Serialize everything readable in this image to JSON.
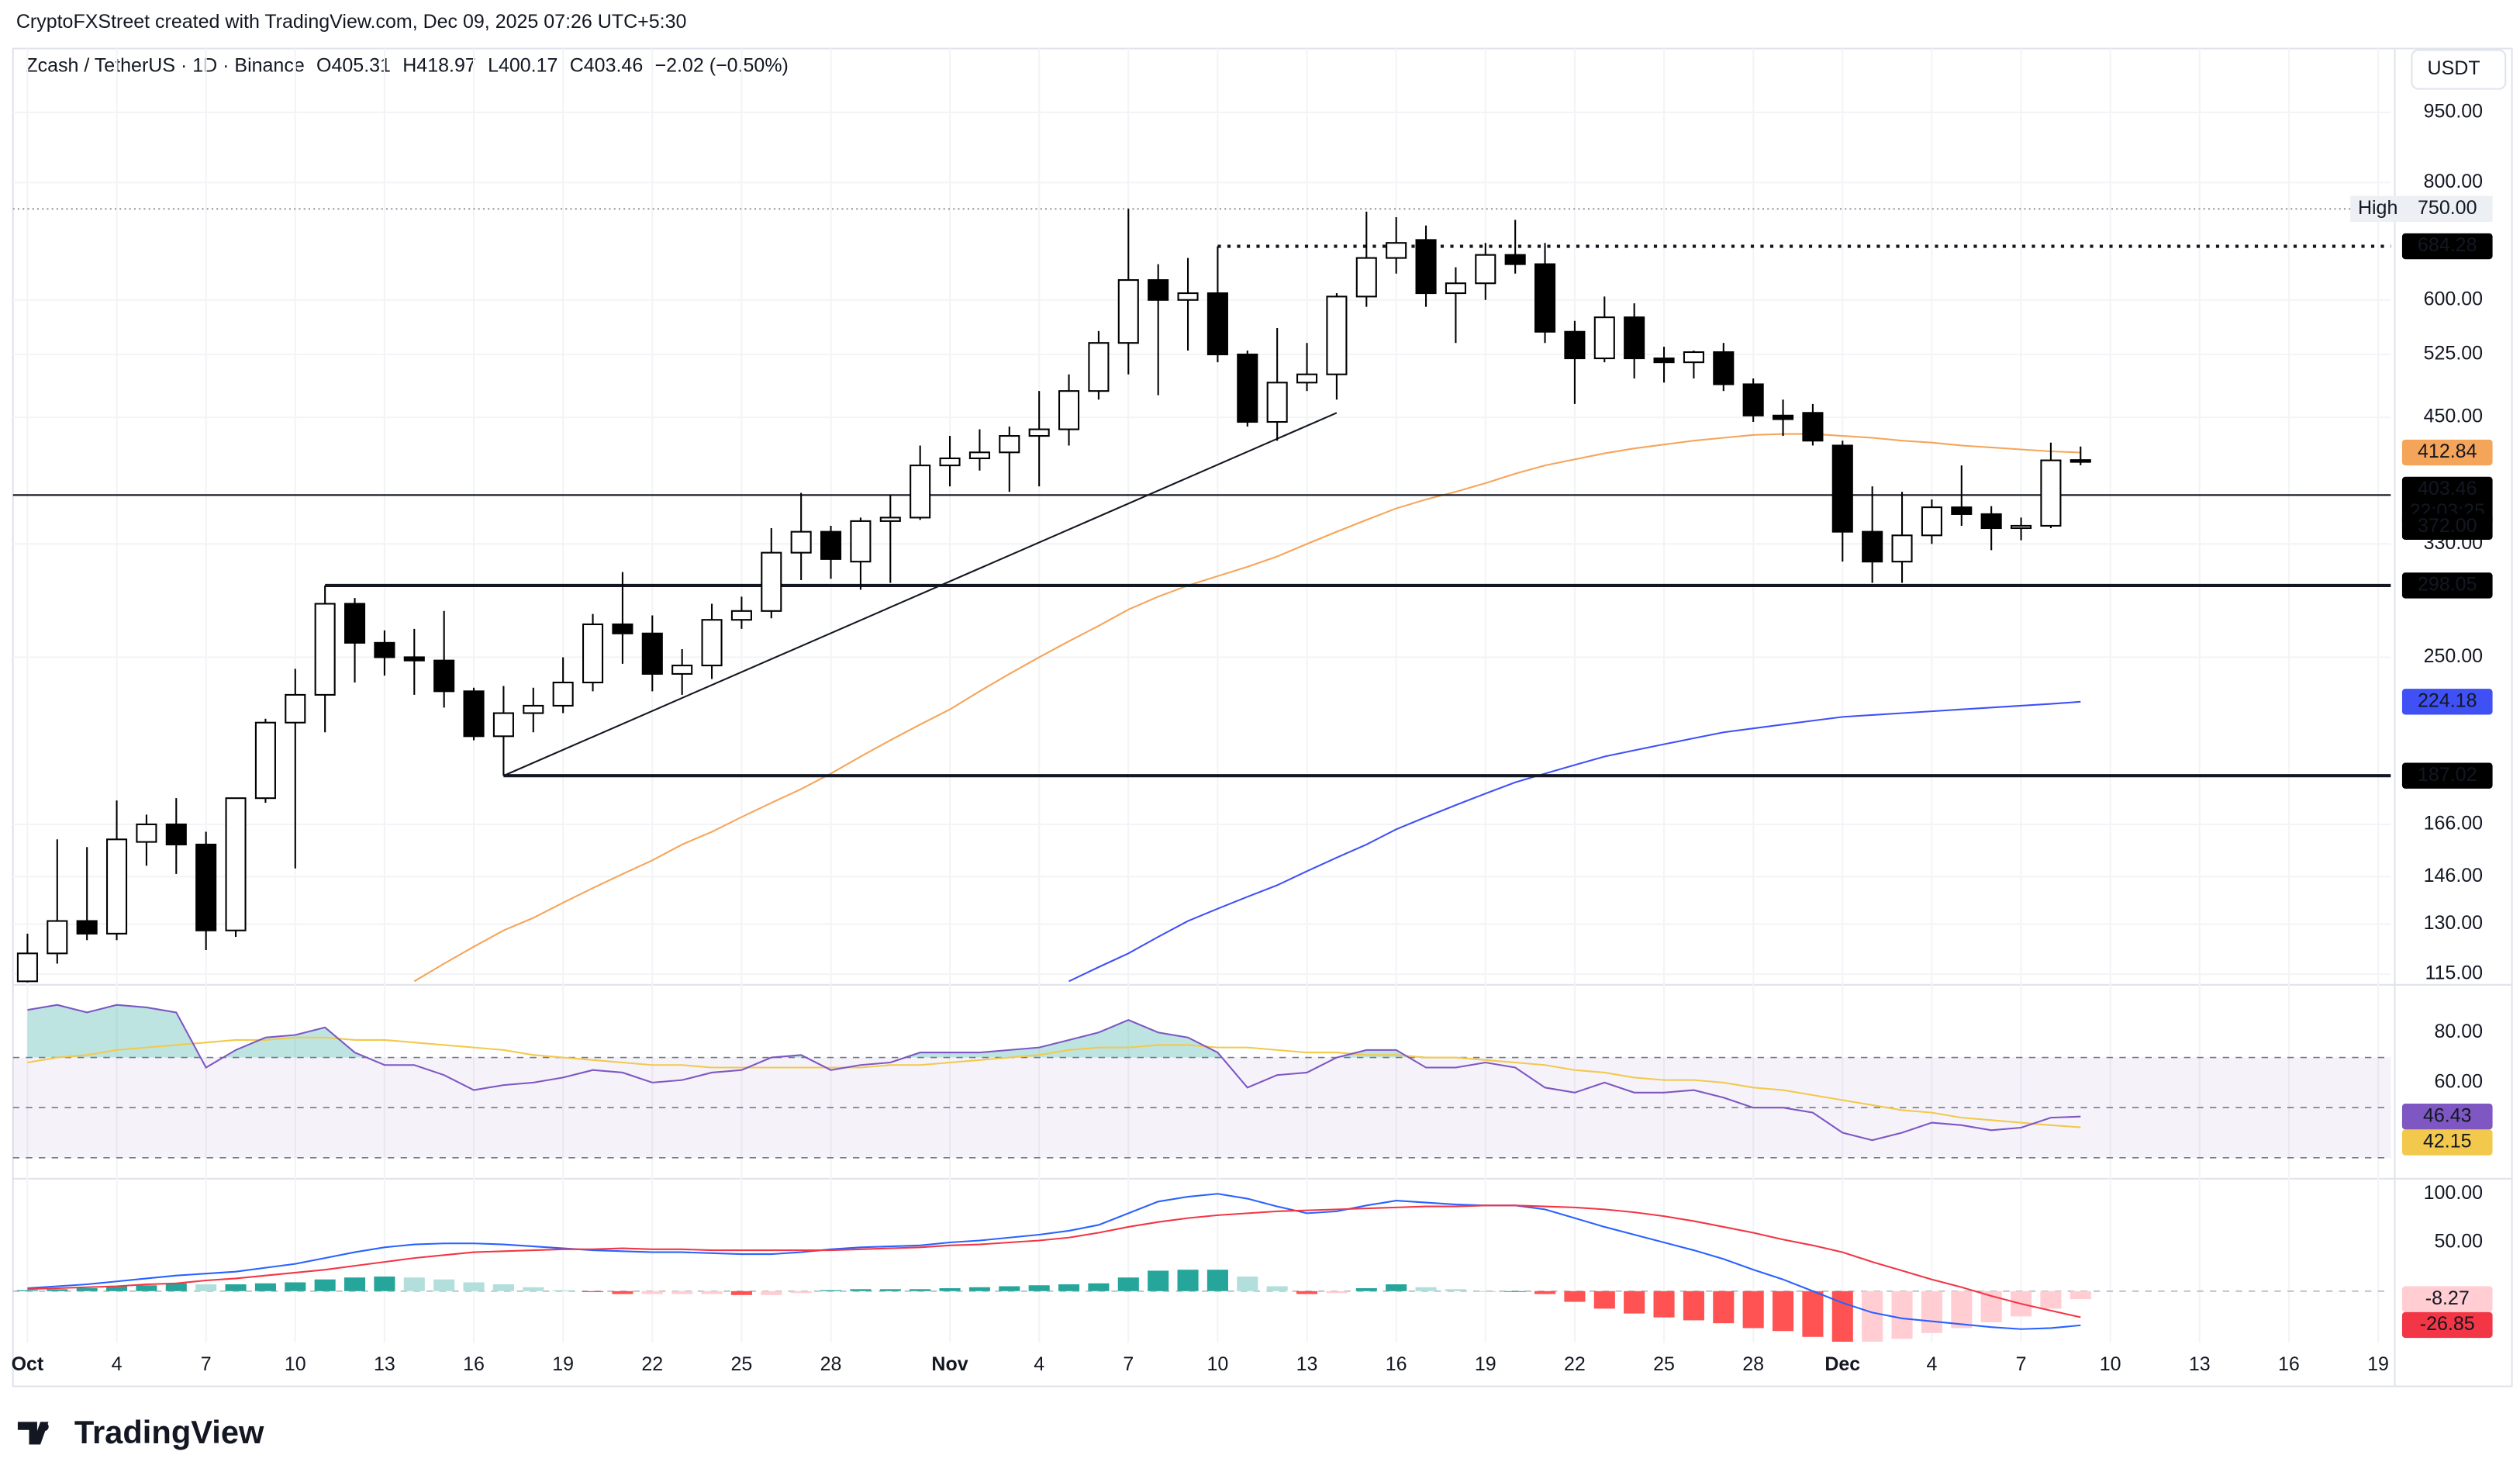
{
  "watermark": "CryptoFXStreet created with TradingView.com, Dec 09, 2025 07:26 UTC+5:30",
  "legend": {
    "symbol": "Zcash / TetherUS · 1D · Binance",
    "open": "O405.31",
    "high": "H418.97",
    "low": "L400.17",
    "close": "C403.46",
    "change": "−2.02 (−0.50%)"
  },
  "currency": "USDT",
  "brand": "TradingView",
  "chart_data": [
    {
      "type": "candlestick",
      "categories": [
        "Oct",
        null,
        null,
        "4",
        null,
        null,
        "7",
        null,
        null,
        "10",
        null,
        null,
        "13",
        null,
        null,
        "16",
        null,
        null,
        "19",
        null,
        null,
        "22",
        null,
        null,
        "25",
        null,
        null,
        "28",
        null,
        null,
        null,
        "Nov",
        null,
        null,
        "4",
        null,
        null,
        "7",
        null,
        null,
        "10",
        null,
        null,
        "13",
        null,
        null,
        "16",
        null,
        null,
        "19",
        null,
        null,
        "22",
        null,
        null,
        "25",
        null,
        null,
        "28",
        null,
        null,
        "Dec",
        null,
        null,
        "4",
        null,
        null,
        "7",
        null,
        null,
        "10",
        null,
        null,
        "13",
        null,
        null,
        "16",
        null,
        null,
        "19"
      ],
      "open": [
        113,
        121,
        131,
        127,
        159,
        166,
        158,
        128,
        177,
        213,
        228,
        285,
        259,
        250,
        248,
        230,
        206,
        218,
        222,
        235,
        271,
        265,
        240,
        245,
        274,
        280,
        323,
        340,
        316,
        349,
        352,
        400,
        407,
        413,
        430,
        437,
        480,
        540,
        630,
        600,
        610,
        525,
        445,
        490,
        500,
        605,
        665,
        695,
        610,
        625,
        670,
        655,
        555,
        520,
        575,
        520,
        515,
        528,
        488,
        452,
        455,
        420,
        340,
        316,
        337,
        361,
        355,
        343,
        345,
        405.31,
        null,
        null,
        null,
        null,
        null,
        null,
        null,
        null,
        null,
        null
      ],
      "high": [
        127,
        160,
        157,
        176,
        170,
        177,
        163,
        177,
        215,
        243,
        298,
        289,
        267,
        268,
        280,
        232,
        233,
        232,
        250,
        278,
        308,
        277,
        255,
        285,
        290,
        343,
        374,
        345,
        352,
        372,
        420,
        430,
        437,
        440,
        480,
        500,
        556,
        750,
        655,
        665,
        684,
        530,
        560,
        540,
        610,
        745,
        735,
        720,
        650,
        690,
        730,
        690,
        570,
        605,
        595,
        535,
        530,
        540,
        495,
        470,
        465,
        425,
        380,
        375,
        368,
        400,
        362,
        352,
        423,
        418.97,
        null,
        null,
        null,
        null,
        null,
        null,
        null,
        null,
        null,
        null
      ],
      "low": [
        110,
        118,
        125,
        125,
        150,
        147,
        122,
        126,
        175,
        149,
        208,
        235,
        239,
        228,
        221,
        204,
        187,
        208,
        218,
        230,
        246,
        230,
        228,
        237,
        268,
        275,
        302,
        303,
        295,
        300,
        350,
        380,
        395,
        375,
        380,
        420,
        470,
        500,
        475,
        530,
        515,
        440,
        425,
        480,
        470,
        590,
        640,
        590,
        540,
        600,
        640,
        540,
        465,
        515,
        495,
        490,
        495,
        480,
        445,
        430,
        420,
        316,
        300,
        300,
        330,
        345,
        325,
        333,
        343,
        400.17,
        null,
        null,
        null,
        null,
        null,
        null,
        null,
        null,
        null,
        null
      ],
      "close": [
        121,
        131,
        127,
        160,
        166,
        158,
        128,
        177,
        213,
        228,
        285,
        259,
        250,
        248,
        230,
        206,
        218,
        222,
        235,
        271,
        265,
        240,
        245,
        274,
        280,
        323,
        340,
        318,
        349,
        352,
        400,
        407,
        413,
        430,
        437,
        480,
        540,
        630,
        600,
        610,
        525,
        445,
        490,
        500,
        605,
        665,
        690,
        610,
        625,
        670,
        655,
        555,
        520,
        575,
        520,
        515,
        528,
        488,
        452,
        448,
        425,
        340,
        316,
        337,
        361,
        355,
        343,
        345,
        405,
        403.46,
        null,
        null,
        null,
        null,
        null,
        null,
        null,
        null,
        null,
        null
      ],
      "countdown": "22:03:25",
      "up_color": "#ffffff",
      "down_color": "#000000",
      "border_color": "#000000",
      "series": [
        {
          "color": "#f5a55a",
          "values": [
            null,
            null,
            null,
            null,
            null,
            null,
            null,
            null,
            null,
            null,
            null,
            null,
            null,
            113,
            118,
            123,
            128,
            132,
            137,
            142,
            147,
            152,
            158,
            163,
            169,
            175,
            181,
            188,
            196,
            204,
            212,
            220,
            230,
            240,
            250,
            260,
            270,
            281,
            290,
            298,
            305,
            312,
            320,
            330,
            340,
            350,
            360,
            368,
            375,
            383,
            392,
            400,
            406,
            412,
            417,
            421,
            425,
            428,
            431,
            432,
            432,
            430,
            428,
            425,
            423,
            420,
            418,
            416,
            414,
            412.84,
            null,
            null,
            null,
            null,
            null,
            null,
            null,
            null,
            null,
            null
          ]
        },
        {
          "color": "#3f51f5",
          "values": [
            null,
            null,
            null,
            null,
            null,
            null,
            null,
            null,
            null,
            null,
            null,
            null,
            null,
            null,
            null,
            null,
            null,
            null,
            null,
            null,
            null,
            null,
            null,
            null,
            null,
            null,
            null,
            null,
            null,
            null,
            null,
            null,
            null,
            null,
            null,
            113,
            117,
            121,
            126,
            131,
            135,
            139,
            143,
            148,
            153,
            158,
            164,
            169,
            174,
            179,
            184,
            188,
            192,
            196,
            199,
            202,
            205,
            208,
            210,
            212,
            214,
            216,
            217,
            218,
            219,
            220,
            221,
            222,
            223,
            224.18,
            null,
            null,
            null,
            null,
            null,
            null,
            null,
            null,
            null,
            null
          ]
        }
      ],
      "levels": [
        {
          "value": 684.28,
          "line": "dotted",
          "from": 40
        },
        {
          "value": 372,
          "label": "372.00",
          "line": "solid"
        },
        {
          "value": 298.05,
          "line": "bold",
          "from": 10
        },
        {
          "value": 187.02,
          "line": "bold",
          "from": 16
        }
      ],
      "high_marker": {
        "tag": "High",
        "value": 750,
        "label": "750.00"
      },
      "trendlines": [
        {
          "from": [
            16,
            187
          ],
          "to": [
            44,
            455
          ]
        }
      ],
      "log_scale": true,
      "ylim": [
        112.7,
        1111
      ],
      "yticks": [
        {
          "value": 950,
          "label": "950.00"
        },
        {
          "value": 800,
          "label": "800.00"
        },
        {
          "value": 600,
          "label": "600.00"
        },
        {
          "value": 525,
          "label": "525.00"
        },
        {
          "value": 450,
          "label": "450.00"
        },
        {
          "value": 330,
          "label": "330.00"
        },
        {
          "value": 250,
          "label": "250.00"
        },
        {
          "value": 166,
          "label": "166.00"
        },
        {
          "value": 146,
          "label": "146.00"
        },
        {
          "value": 130,
          "label": "130.00"
        },
        {
          "value": 115,
          "label": "115.00"
        }
      ],
      "grid": true
    },
    {
      "type": "line",
      "series": [
        {
          "color": "#7e57c2",
          "values": [
            89,
            91,
            88,
            91,
            90,
            88,
            66,
            73,
            78,
            79,
            82,
            72,
            67,
            67,
            63,
            57,
            59,
            60,
            62,
            65,
            64,
            60,
            61,
            64,
            65,
            70,
            71,
            65,
            67,
            68,
            72,
            72,
            72,
            73,
            74,
            77,
            80,
            85,
            80,
            78,
            72,
            58,
            63,
            64,
            70,
            73,
            73,
            66,
            66,
            68,
            66,
            58,
            56,
            60,
            56,
            56,
            57,
            54,
            50,
            50,
            48,
            40,
            37,
            40,
            44,
            43,
            41,
            42,
            46,
            46.43,
            null,
            null,
            null,
            null,
            null,
            null,
            null,
            null,
            null,
            null
          ]
        },
        {
          "color": "#f2c94c",
          "values": [
            68,
            70,
            71,
            73,
            74,
            75,
            76,
            77,
            77,
            78,
            78,
            77,
            77,
            76,
            75,
            74,
            73,
            71,
            70,
            69,
            68,
            67,
            67,
            66,
            66,
            66,
            66,
            66,
            66,
            67,
            67,
            68,
            69,
            70,
            71,
            73,
            74,
            74,
            75,
            75,
            74,
            74,
            73,
            72,
            72,
            71,
            71,
            70,
            70,
            69,
            68,
            67,
            65,
            64,
            62,
            61,
            61,
            60,
            58,
            57,
            55,
            53,
            51,
            49,
            48,
            46,
            45,
            44,
            43,
            42.15,
            null,
            null,
            null,
            null,
            null,
            null,
            null,
            null,
            null,
            null
          ]
        }
      ],
      "hlines": [
        70,
        50,
        30
      ],
      "band": [
        70,
        30
      ],
      "band_color": "#7e57c2",
      "overbought_fill": "#26a69a",
      "ylim": [
        22.6,
        97.4
      ],
      "yticks": [
        {
          "value": 80,
          "label": "80.00"
        },
        {
          "value": 60,
          "label": "60.00"
        }
      ]
    },
    {
      "type": "macd",
      "series": [
        {
          "color": "#2962ff",
          "values": [
            3,
            5,
            7,
            10,
            13,
            16,
            18,
            20,
            24,
            28,
            34,
            40,
            45,
            48,
            49,
            49,
            48,
            46,
            44,
            42,
            41,
            40,
            40,
            39,
            38,
            38,
            40,
            43,
            45,
            46,
            47,
            50,
            52,
            55,
            58,
            62,
            68,
            80,
            92,
            97,
            100,
            95,
            87,
            80,
            82,
            88,
            93,
            91,
            89,
            88,
            88,
            84,
            75,
            66,
            58,
            50,
            42,
            33,
            22,
            12,
            0,
            -12,
            -22,
            -28,
            -31,
            -34,
            -37,
            -39,
            -38,
            -35.12,
            null,
            null,
            null,
            null,
            null,
            null,
            null,
            null,
            null,
            null
          ]
        },
        {
          "color": "#f23645",
          "values": [
            2,
            3,
            4,
            5,
            7,
            8,
            11,
            13,
            16,
            19,
            22,
            26,
            30,
            34,
            37,
            40,
            41,
            42,
            43,
            43,
            44,
            43,
            43,
            42,
            42,
            42,
            42,
            42,
            43,
            44,
            45,
            47,
            48,
            50,
            52,
            55,
            60,
            66,
            71,
            75,
            78,
            80,
            82,
            83,
            84,
            85,
            86,
            87,
            87,
            88,
            88,
            87,
            86,
            84,
            81,
            77,
            72,
            66,
            60,
            53,
            47,
            40,
            30,
            21,
            12,
            4,
            -5,
            -13,
            -20,
            -26.85,
            null,
            null,
            null,
            null,
            null,
            null,
            null,
            null,
            null,
            null
          ]
        }
      ],
      "histogram": {
        "colors": [
          "#26a69a",
          "#b2dfdb",
          "#ffcdd2",
          "#ff5252"
        ],
        "values": [
          1,
          2,
          3,
          5,
          6,
          8,
          7,
          7,
          8,
          9,
          12,
          14,
          15,
          14,
          12,
          9,
          7,
          4,
          1,
          -1,
          -3,
          -3,
          -3,
          -3,
          -4,
          -4,
          -2,
          1,
          2,
          2,
          2,
          3,
          4,
          5,
          6,
          7,
          8,
          14,
          21,
          22,
          22,
          15,
          5,
          -3,
          -2,
          3,
          7,
          4,
          2,
          0,
          0,
          -3,
          -11,
          -18,
          -23,
          -27,
          -30,
          -33,
          -38,
          -41,
          -47,
          -52,
          -52,
          -49,
          -43,
          -38,
          -32,
          -26,
          -18,
          -8.27,
          null,
          null,
          null,
          null,
          null,
          null,
          null,
          null,
          null,
          null
        ]
      },
      "hlines": [
        0
      ],
      "ylim": [
        -53,
        113
      ],
      "yticks": [
        {
          "value": 100,
          "label": "100.00"
        },
        {
          "value": 50,
          "label": "50.00"
        }
      ]
    }
  ]
}
